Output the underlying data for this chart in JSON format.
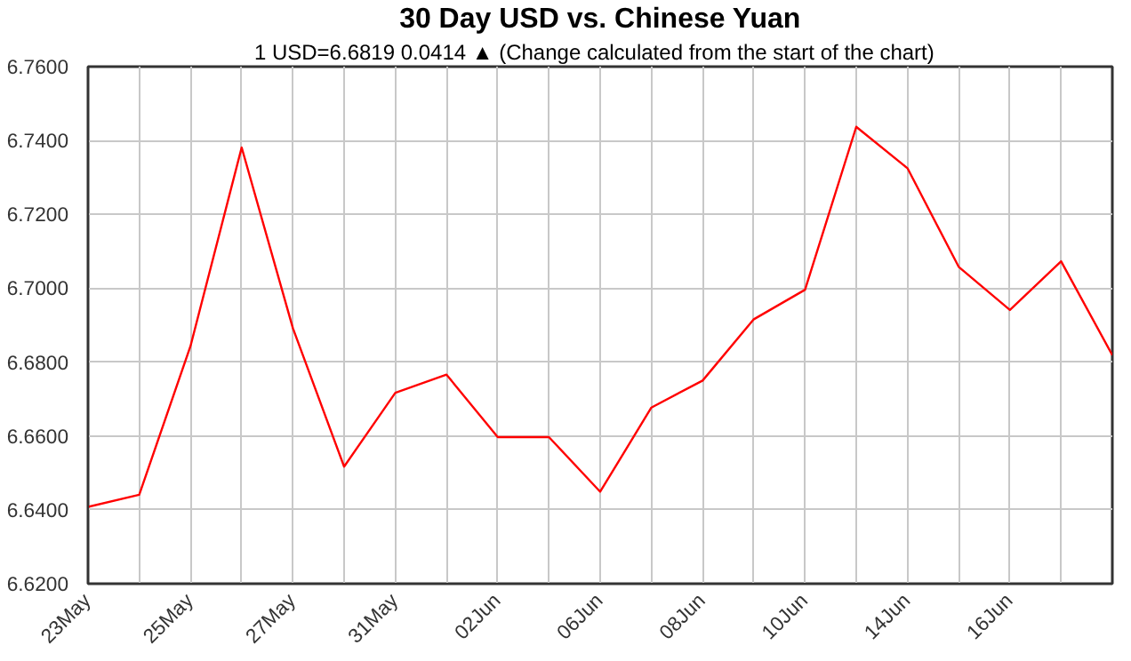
{
  "chart_data": {
    "type": "line",
    "title": "30 Day USD vs. Chinese Yuan",
    "subtitle": "1 USD=6.6819  0.0414 ▲  (Change calculated from the start of the chart)",
    "categories": [
      "23May",
      null,
      "25May",
      null,
      "27May",
      null,
      "31May",
      null,
      "02Jun",
      null,
      "06Jun",
      null,
      "08Jun",
      null,
      "10Jun",
      null,
      "14Jun",
      null,
      "16Jun",
      null,
      null
    ],
    "series": [
      {
        "color": "#ff0000",
        "values": [
          6.6408,
          6.6441,
          6.6843,
          6.7381,
          6.6892,
          6.6517,
          6.6717,
          6.6766,
          6.6597,
          6.6597,
          6.6449,
          6.6677,
          6.675,
          6.6916,
          6.6996,
          6.7437,
          6.7325,
          6.7058,
          6.6941,
          6.7073,
          6.6819
        ]
      }
    ],
    "ylim": [
      6.62,
      6.76
    ],
    "yticks": [
      {
        "value": 6.62,
        "label": "6.6200"
      },
      {
        "value": 6.64,
        "label": "6.6400"
      },
      {
        "value": 6.66,
        "label": "6.6600"
      },
      {
        "value": 6.68,
        "label": "6.6800"
      },
      {
        "value": 6.7,
        "label": "6.7000"
      },
      {
        "value": 6.72,
        "label": "6.7200"
      },
      {
        "value": 6.74,
        "label": "6.7400"
      },
      {
        "value": 6.76,
        "label": "6.7600"
      }
    ],
    "grid": true,
    "marker": "none",
    "line_style": "solid"
  }
}
